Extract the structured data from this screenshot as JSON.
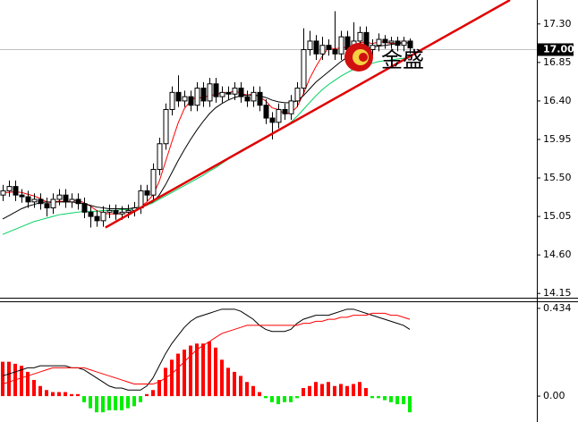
{
  "watermark": "金盛",
  "chart_data": [
    {
      "type": "candlestick",
      "up_color": "#ffffff",
      "down_color": "#000000",
      "open": [
        15.3,
        15.35,
        15.4,
        15.3,
        15.28,
        15.22,
        15.25,
        15.2,
        15.15,
        15.25,
        15.3,
        15.22,
        15.25,
        15.2,
        15.1,
        15.05,
        15.0,
        15.1,
        15.12,
        15.08,
        15.1,
        15.12,
        15.15,
        15.35,
        15.3,
        15.6,
        15.9,
        16.3,
        16.5,
        16.4,
        16.45,
        16.35,
        16.55,
        16.4,
        16.6,
        16.45,
        16.5,
        16.48,
        16.55,
        16.45,
        16.4,
        16.5,
        16.35,
        16.2,
        16.15,
        16.3,
        16.25,
        16.4,
        16.55,
        17.0,
        17.1,
        16.95,
        17.05,
        17.0,
        16.95,
        17.15,
        17.0,
        17.1,
        17.2,
        17.0,
        17.05,
        17.12,
        17.08,
        17.1,
        17.05,
        17.1
      ],
      "high": [
        15.42,
        15.47,
        15.47,
        15.37,
        15.35,
        15.32,
        15.32,
        15.27,
        15.32,
        15.37,
        15.37,
        15.32,
        15.32,
        15.27,
        15.17,
        15.12,
        15.17,
        15.19,
        15.19,
        15.17,
        15.19,
        15.22,
        15.42,
        15.42,
        15.67,
        15.97,
        16.37,
        16.57,
        16.7,
        16.52,
        16.52,
        16.62,
        16.62,
        16.67,
        16.67,
        16.57,
        16.57,
        16.62,
        16.62,
        16.52,
        16.57,
        16.57,
        16.42,
        16.27,
        16.37,
        16.37,
        16.47,
        16.62,
        17.25,
        17.22,
        17.17,
        17.15,
        17.12,
        17.45,
        17.22,
        17.22,
        17.32,
        17.27,
        17.27,
        17.12,
        17.19,
        17.17,
        17.15,
        17.15,
        17.15,
        17.13
      ],
      "low": [
        15.23,
        15.28,
        15.23,
        15.21,
        15.15,
        15.15,
        15.13,
        15.05,
        15.08,
        15.18,
        15.15,
        15.15,
        15.13,
        15.03,
        14.92,
        14.93,
        14.93,
        15.03,
        15.01,
        15.01,
        15.03,
        15.05,
        15.08,
        15.23,
        15.23,
        15.53,
        15.83,
        16.23,
        16.33,
        16.33,
        16.28,
        16.28,
        16.33,
        16.33,
        16.38,
        16.38,
        16.41,
        16.41,
        16.38,
        16.33,
        16.33,
        16.28,
        16.13,
        15.95,
        16.08,
        16.18,
        16.18,
        16.33,
        16.48,
        16.93,
        16.88,
        16.88,
        16.93,
        16.88,
        16.88,
        16.93,
        16.93,
        17.03,
        16.93,
        16.93,
        16.98,
        17.01,
        17.01,
        16.98,
        16.98,
        16.95
      ],
      "close": [
        15.35,
        15.4,
        15.3,
        15.28,
        15.22,
        15.25,
        15.2,
        15.15,
        15.25,
        15.3,
        15.22,
        15.25,
        15.2,
        15.1,
        15.05,
        15.0,
        15.1,
        15.12,
        15.08,
        15.1,
        15.12,
        15.15,
        15.35,
        15.3,
        15.6,
        15.9,
        16.3,
        16.5,
        16.4,
        16.45,
        16.35,
        16.55,
        16.4,
        16.6,
        16.45,
        16.5,
        16.48,
        16.55,
        16.45,
        16.4,
        16.5,
        16.35,
        16.2,
        16.15,
        16.3,
        16.25,
        16.4,
        16.55,
        17.0,
        17.1,
        16.95,
        17.05,
        17.0,
        16.95,
        17.15,
        17.0,
        17.1,
        17.2,
        17.0,
        17.05,
        17.12,
        17.08,
        17.1,
        17.05,
        17.1,
        17.02
      ],
      "lines": [
        {
          "color": "#ff0000",
          "values": [
            15.33,
            15.33,
            15.34,
            15.33,
            15.31,
            15.29,
            15.26,
            15.22,
            15.21,
            15.23,
            15.22,
            15.23,
            15.24,
            15.21,
            15.17,
            15.12,
            15.09,
            15.08,
            15.08,
            15.08,
            15.1,
            15.11,
            15.16,
            15.22,
            15.3,
            15.46,
            15.69,
            15.92,
            16.14,
            16.31,
            16.4,
            16.45,
            16.43,
            16.47,
            16.47,
            16.5,
            16.49,
            16.52,
            16.49,
            16.47,
            16.48,
            16.45,
            16.4,
            16.32,
            16.3,
            16.25,
            16.26,
            16.33,
            16.48,
            16.66,
            16.8,
            16.92,
            17.02,
            17.01,
            17.02,
            17.03,
            17.04,
            17.08,
            17.09,
            17.07,
            17.09,
            17.09,
            17.07,
            17.07,
            17.09,
            17.07
          ]
        },
        {
          "color": "#000000",
          "values": [
            15.02,
            15.06,
            15.1,
            15.14,
            15.17,
            15.19,
            15.21,
            15.22,
            15.22,
            15.22,
            15.22,
            15.22,
            15.21,
            15.2,
            15.18,
            15.16,
            15.15,
            15.14,
            15.14,
            15.14,
            15.14,
            15.15,
            15.16,
            15.18,
            15.22,
            15.3,
            15.42,
            15.56,
            15.7,
            15.83,
            15.95,
            16.06,
            16.16,
            16.25,
            16.32,
            16.37,
            16.41,
            16.44,
            16.46,
            16.47,
            16.47,
            16.46,
            16.44,
            16.41,
            16.39,
            16.38,
            16.38,
            16.4,
            16.46,
            16.54,
            16.62,
            16.68,
            16.74,
            16.8,
            16.86,
            16.91,
            16.95,
            16.99,
            17.01,
            17.03,
            17.04,
            17.05,
            17.06,
            17.07,
            17.08,
            17.08
          ]
        },
        {
          "color": "#00d060",
          "values": [
            14.84,
            14.87,
            14.9,
            14.93,
            14.96,
            14.99,
            15.01,
            15.03,
            15.05,
            15.07,
            15.08,
            15.09,
            15.1,
            15.11,
            15.11,
            15.11,
            15.12,
            15.12,
            15.12,
            15.13,
            15.13,
            15.14,
            15.16,
            15.18,
            15.21,
            15.25,
            15.29,
            15.33,
            15.37,
            15.41,
            15.45,
            15.49,
            15.53,
            15.58,
            15.62,
            15.67,
            15.72,
            15.77,
            15.82,
            15.86,
            15.9,
            15.94,
            15.98,
            16.02,
            16.06,
            16.1,
            16.15,
            16.22,
            16.3,
            16.38,
            16.46,
            16.53,
            16.59,
            16.64,
            16.69,
            16.73,
            16.77,
            16.8,
            16.82,
            16.84,
            16.86,
            16.87,
            16.88,
            16.89,
            16.9,
            16.9
          ]
        }
      ],
      "trendline": {
        "color": "#e00000",
        "index": [
          16.4,
          81
        ],
        "values": [
          14.92,
          17.58
        ]
      },
      "price_line": {
        "value": 17.0,
        "label": "17.00"
      },
      "ylim": [
        14.1,
        17.58
      ],
      "yticks": [
        {
          "value": 17.3,
          "label": "17.30"
        },
        16.85,
        {
          "value": 16.4,
          "label": "16.40"
        },
        15.95,
        {
          "value": 15.5,
          "label": "15.50"
        },
        15.05,
        {
          "value": 14.6,
          "label": "14.60"
        },
        14.15
      ]
    },
    {
      "type": "bar",
      "positive_color": "#ff0000",
      "negative_color": "#00ee00",
      "values": [
        0.17,
        0.17,
        0.16,
        0.15,
        0.12,
        0.08,
        0.05,
        0.03,
        0.02,
        0.02,
        0.02,
        0.01,
        0.01,
        -0.03,
        -0.06,
        -0.08,
        -0.08,
        -0.07,
        -0.07,
        -0.07,
        -0.06,
        -0.05,
        -0.03,
        0.01,
        0.03,
        0.08,
        0.14,
        0.18,
        0.21,
        0.23,
        0.25,
        0.26,
        0.26,
        0.27,
        0.24,
        0.18,
        0.14,
        0.12,
        0.1,
        0.07,
        0.05,
        0.02,
        -0.01,
        -0.03,
        -0.04,
        -0.03,
        -0.03,
        -0.01,
        0.04,
        0.05,
        0.07,
        0.06,
        0.07,
        0.05,
        0.06,
        0.05,
        0.06,
        0.07,
        0.04,
        -0.01,
        -0.01,
        -0.02,
        -0.03,
        -0.04,
        -0.04,
        -0.08
      ],
      "lines": [
        {
          "color": "#000000",
          "values": [
            0.1,
            0.11,
            0.12,
            0.13,
            0.14,
            0.14,
            0.15,
            0.15,
            0.15,
            0.15,
            0.15,
            0.14,
            0.14,
            0.13,
            0.11,
            0.09,
            0.07,
            0.05,
            0.04,
            0.04,
            0.03,
            0.03,
            0.03,
            0.05,
            0.09,
            0.15,
            0.21,
            0.26,
            0.3,
            0.34,
            0.37,
            0.39,
            0.4,
            0.41,
            0.42,
            0.43,
            0.43,
            0.43,
            0.42,
            0.4,
            0.38,
            0.35,
            0.33,
            0.32,
            0.32,
            0.32,
            0.33,
            0.36,
            0.38,
            0.39,
            0.4,
            0.4,
            0.4,
            0.41,
            0.42,
            0.43,
            0.43,
            0.42,
            0.41,
            0.4,
            0.39,
            0.38,
            0.37,
            0.36,
            0.35,
            0.33
          ]
        },
        {
          "color": "#ff0000",
          "values": [
            0.06,
            0.07,
            0.08,
            0.09,
            0.1,
            0.11,
            0.12,
            0.13,
            0.14,
            0.14,
            0.14,
            0.14,
            0.14,
            0.14,
            0.13,
            0.12,
            0.11,
            0.1,
            0.09,
            0.08,
            0.07,
            0.06,
            0.06,
            0.06,
            0.06,
            0.07,
            0.09,
            0.11,
            0.14,
            0.17,
            0.2,
            0.23,
            0.25,
            0.27,
            0.29,
            0.31,
            0.32,
            0.33,
            0.34,
            0.35,
            0.35,
            0.35,
            0.35,
            0.35,
            0.35,
            0.35,
            0.35,
            0.35,
            0.36,
            0.36,
            0.37,
            0.37,
            0.38,
            0.38,
            0.39,
            0.39,
            0.4,
            0.4,
            0.4,
            0.41,
            0.41,
            0.41,
            0.4,
            0.4,
            0.39,
            0.38
          ]
        }
      ],
      "ylim": [
        -0.128,
        0.469
      ],
      "yticks": [
        0.434,
        {
          "value": 0,
          "label": "0.00"
        }
      ]
    }
  ]
}
